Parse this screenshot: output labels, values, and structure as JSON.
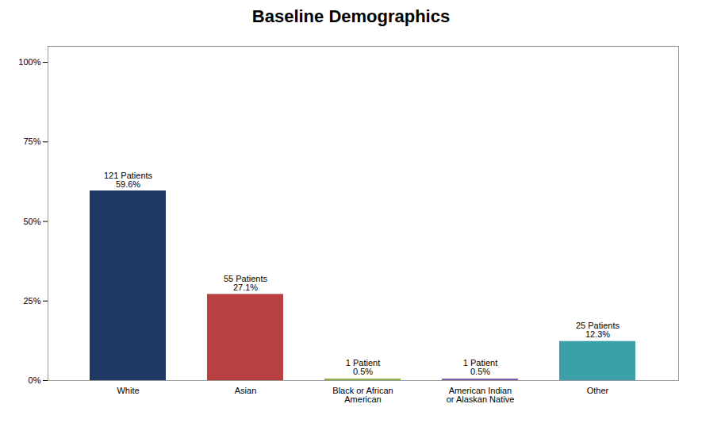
{
  "chart_data": {
    "type": "bar",
    "title": "Baseline Demographics",
    "categories": [
      "White",
      "Asian",
      "Black or African\nAmerican",
      "American Indian\nor Alaskan Native",
      "Other"
    ],
    "values": [
      59.6,
      27.1,
      0.5,
      0.5,
      12.3
    ],
    "colors": [
      "#1F3864",
      "#B84040",
      "#8DB04A",
      "#7B5EA7",
      "#3BA0A8"
    ],
    "annotations": [
      "121 Patients\n59.6%",
      "55 Patients\n27.1%",
      "1 Patient\n0.5%",
      "1 Patient\n0.5%",
      "25 Patients\n12.3%"
    ],
    "ylim": [
      0,
      105
    ],
    "yticks": [
      {
        "value": 0,
        "label": "0%"
      },
      {
        "value": 25,
        "label": "25%"
      },
      {
        "value": 50,
        "label": "50%"
      },
      {
        "value": 75,
        "label": "75%"
      },
      {
        "value": 100,
        "label": "100%"
      }
    ],
    "grid": false
  }
}
